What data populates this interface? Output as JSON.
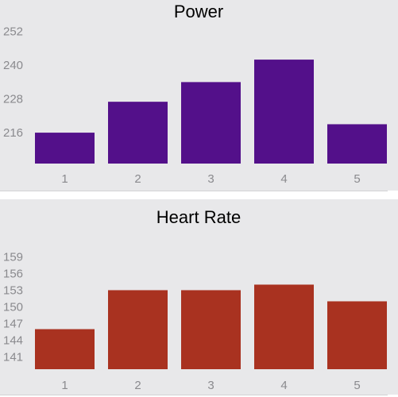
{
  "chart_data": [
    {
      "type": "bar",
      "title": "Power",
      "categories": [
        "1",
        "2",
        "3",
        "4",
        "5"
      ],
      "values": [
        216,
        227,
        234,
        242,
        219
      ],
      "ylim": [
        205,
        257
      ],
      "yticks": [
        "252",
        "240",
        "228",
        "216"
      ],
      "ytick_values": [
        252,
        240,
        228,
        216
      ],
      "xlabel": "",
      "ylabel": "",
      "grid": false,
      "color": "#53108a"
    },
    {
      "type": "bar",
      "title": "Heart Rate",
      "categories": [
        "1",
        "2",
        "3",
        "4",
        "5"
      ],
      "values": [
        146,
        153,
        153,
        154,
        151
      ],
      "ylim": [
        138.8,
        160.2
      ],
      "yticks": [
        "159",
        "156",
        "153",
        "150",
        "147",
        "144",
        "141"
      ],
      "ytick_values": [
        159,
        156,
        153,
        150,
        147,
        144,
        141
      ],
      "xlabel": "",
      "ylabel": "",
      "grid": false,
      "color": "#a93220"
    }
  ]
}
